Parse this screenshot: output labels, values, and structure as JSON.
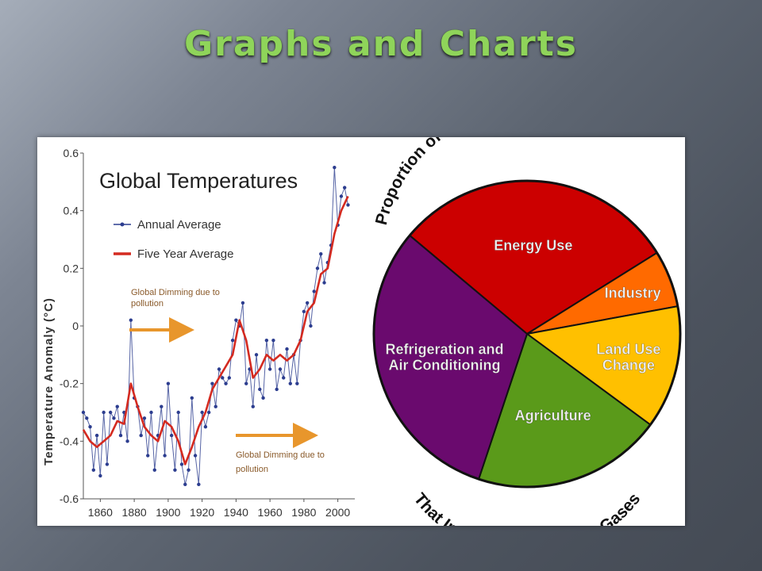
{
  "slide": {
    "title": "Graphs and Charts"
  },
  "chart_data": [
    {
      "type": "line",
      "title": "Global Temperatures",
      "xlabel": "",
      "ylabel": "Temperature Anomaly (°C)",
      "xlim": [
        1850,
        2010
      ],
      "ylim": [
        -0.6,
        0.6
      ],
      "x_ticks": [
        1860,
        1880,
        1900,
        1920,
        1940,
        1960,
        1980,
        2000
      ],
      "y_ticks": [
        0.6,
        0.4,
        0.2,
        0,
        -0.2,
        -0.4,
        -0.6
      ],
      "y_tick_labels": [
        "0.6",
        "0.4",
        "0.2",
        "0",
        "-0.2",
        "-0.4",
        "-0.6"
      ],
      "grid": false,
      "legend_position": "top-left",
      "series": [
        {
          "name": "Annual Average",
          "color": "#2c3d8f",
          "marker": "dot",
          "x": [
            1850,
            1852,
            1854,
            1856,
            1858,
            1860,
            1862,
            1864,
            1866,
            1868,
            1870,
            1872,
            1874,
            1876,
            1878,
            1880,
            1882,
            1884,
            1886,
            1888,
            1890,
            1892,
            1894,
            1896,
            1898,
            1900,
            1902,
            1904,
            1906,
            1908,
            1910,
            1912,
            1914,
            1916,
            1918,
            1920,
            1922,
            1924,
            1926,
            1928,
            1930,
            1932,
            1934,
            1936,
            1938,
            1940,
            1942,
            1944,
            1946,
            1948,
            1950,
            1952,
            1954,
            1956,
            1958,
            1960,
            1962,
            1964,
            1966,
            1968,
            1970,
            1972,
            1974,
            1976,
            1978,
            1980,
            1982,
            1984,
            1986,
            1988,
            1990,
            1992,
            1994,
            1996,
            1998,
            2000,
            2002,
            2004,
            2006
          ],
          "values": [
            -0.3,
            -0.32,
            -0.35,
            -0.5,
            -0.38,
            -0.52,
            -0.3,
            -0.48,
            -0.3,
            -0.32,
            -0.28,
            -0.38,
            -0.3,
            -0.4,
            0.02,
            -0.25,
            -0.28,
            -0.38,
            -0.32,
            -0.45,
            -0.3,
            -0.5,
            -0.38,
            -0.28,
            -0.45,
            -0.2,
            -0.38,
            -0.5,
            -0.3,
            -0.48,
            -0.55,
            -0.5,
            -0.25,
            -0.45,
            -0.55,
            -0.3,
            -0.35,
            -0.3,
            -0.2,
            -0.28,
            -0.15,
            -0.18,
            -0.2,
            -0.18,
            -0.05,
            0.02,
            0.0,
            0.08,
            -0.2,
            -0.15,
            -0.28,
            -0.1,
            -0.22,
            -0.25,
            -0.05,
            -0.15,
            -0.05,
            -0.22,
            -0.15,
            -0.18,
            -0.08,
            -0.2,
            -0.1,
            -0.2,
            -0.05,
            0.05,
            0.08,
            0.0,
            0.12,
            0.2,
            0.25,
            0.15,
            0.22,
            0.28,
            0.55,
            0.35,
            0.45,
            0.48,
            0.42
          ]
        },
        {
          "name": "Five Year Average",
          "color": "#d42a20",
          "marker": "none",
          "x": [
            1850,
            1854,
            1858,
            1862,
            1866,
            1870,
            1874,
            1878,
            1882,
            1886,
            1890,
            1894,
            1898,
            1902,
            1906,
            1910,
            1914,
            1918,
            1922,
            1926,
            1930,
            1934,
            1938,
            1942,
            1946,
            1950,
            1954,
            1958,
            1962,
            1966,
            1970,
            1974,
            1978,
            1982,
            1986,
            1990,
            1994,
            1998,
            2002,
            2006
          ],
          "values": [
            -0.36,
            -0.4,
            -0.42,
            -0.4,
            -0.38,
            -0.33,
            -0.34,
            -0.2,
            -0.28,
            -0.35,
            -0.38,
            -0.4,
            -0.33,
            -0.35,
            -0.4,
            -0.48,
            -0.42,
            -0.35,
            -0.3,
            -0.22,
            -0.18,
            -0.14,
            -0.1,
            0.02,
            -0.05,
            -0.18,
            -0.15,
            -0.1,
            -0.12,
            -0.1,
            -0.12,
            -0.1,
            -0.05,
            0.05,
            0.08,
            0.18,
            0.2,
            0.32,
            0.4,
            0.45
          ]
        }
      ],
      "annotations": [
        {
          "text_lines": [
            "Global Dimming due to",
            "pollution"
          ],
          "arrow_color": "#e8962c",
          "x": 1880,
          "y": 0.0
        },
        {
          "text_lines": [
            "Global Dimming due to",
            "pollution"
          ],
          "arrow_color": "#e8962c",
          "x": 1943,
          "y": -0.37
        }
      ]
    },
    {
      "type": "pie",
      "title": "Proportion of Human Activities",
      "subtitle": "That Increase Greenhouse Gases",
      "slices": [
        {
          "label": "Energy Use",
          "value": 30,
          "color": "#cc0000"
        },
        {
          "label": "Industry",
          "value": 6,
          "color": "#ff6a00"
        },
        {
          "label": "Land Use Change",
          "label_lines": [
            "Land Use",
            "Change"
          ],
          "value": 13,
          "color": "#ffc000"
        },
        {
          "label": "Agriculture",
          "value": 20,
          "color": "#5a9a1a"
        },
        {
          "label": "Refrigeration and Air Conditioning",
          "label_lines": [
            "Refrigeration and",
            "Air Conditioning"
          ],
          "value": 31,
          "color": "#6a0a6e"
        }
      ]
    }
  ]
}
